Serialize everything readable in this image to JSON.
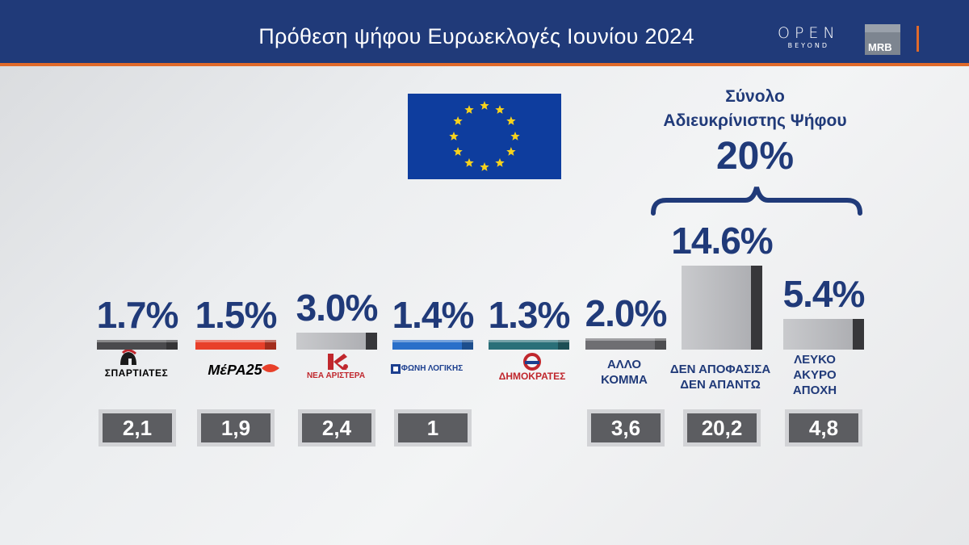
{
  "header": {
    "title": "Πρόθεση ψήφου Ευρωεκλογές Ιουνίου 2024",
    "open_logo": "OPEN",
    "open_sub": "BEYOND",
    "mrb_logo": "MRB"
  },
  "total": {
    "title_line1": "Σύνολο",
    "title_line2": "Αδιευκρίνιστης Ψήφου",
    "value": "20%"
  },
  "colors": {
    "header_bg": "#203a79",
    "accent": "#e06a2a",
    "text": "#203a79"
  },
  "chart_data": {
    "type": "bar",
    "categories": [
      "ΣΠΑΡΤΙΑΤΕΣ",
      "ΜέΡΑ25",
      "ΝΕΑ ΑΡΙΣΤΕΡΑ",
      "ΦΩΝΗ ΛΟΓΙΚΗΣ",
      "ΔΗΜΟΚΡΑΤΕΣ",
      "ΑΛΛΟ ΚΟΜΜΑ",
      "ΔΕΝ ΑΠΟΦΑΣΙΣΑ ΔΕΝ ΑΠΑΝΤΩ",
      "ΛΕΥΚΟ ΑΚΥΡΟ ΑΠΟΧΗ"
    ],
    "values": [
      1.7,
      1.5,
      3.0,
      1.4,
      1.3,
      2.0,
      14.6,
      5.4
    ],
    "data_labels": [
      "1.7%",
      "1.5%",
      "3.0%",
      "1.4%",
      "1.3%",
      "2.0%",
      "14.6%",
      "5.4%"
    ],
    "previous_labels": [
      "2,1",
      "1,9",
      "2,4",
      "1",
      "",
      "3,6",
      "20,2",
      "4,8"
    ],
    "bar_colors": [
      "#4a4a4d",
      "#e8402a",
      "#a8262b",
      "#2a6fc9",
      "#2a6f78",
      "#6e6e72",
      "#8f9094",
      "#8f9094"
    ]
  },
  "parties": [
    {
      "logo_text": "ΣΠΑΡΤΙΑΤΕΣ",
      "logo_color": "#1a1a1a"
    },
    {
      "logo_text": "ΜέΡΑ25",
      "logo_color": "#1a1a1a"
    },
    {
      "logo_text": "ΝΕΑ ΑΡΙΣΤΕΡΑ",
      "logo_color": "#c0272d"
    },
    {
      "logo_text": "ΦΩΝΗ ΛΟΓΙΚΗΣ",
      "logo_color": "#1c3f8f"
    },
    {
      "logo_text": "ΔΗΜΟΚΡΑΤΕΣ",
      "logo_color": "#c0272d"
    }
  ],
  "other_labels": {
    "allo_l1": "ΑΛΛΟ",
    "allo_l2": "ΚΟΜΜΑ",
    "den_l1": "ΔΕΝ ΑΠΟΦΑΣΙΣΑ",
    "den_l2": "ΔΕΝ ΑΠΑΝΤΩ",
    "lefko_l1": "ΛΕΥΚΟ",
    "lefko_l2": "ΑΚΥΡΟ",
    "lefko_l3": "ΑΠΟΧΗ"
  }
}
